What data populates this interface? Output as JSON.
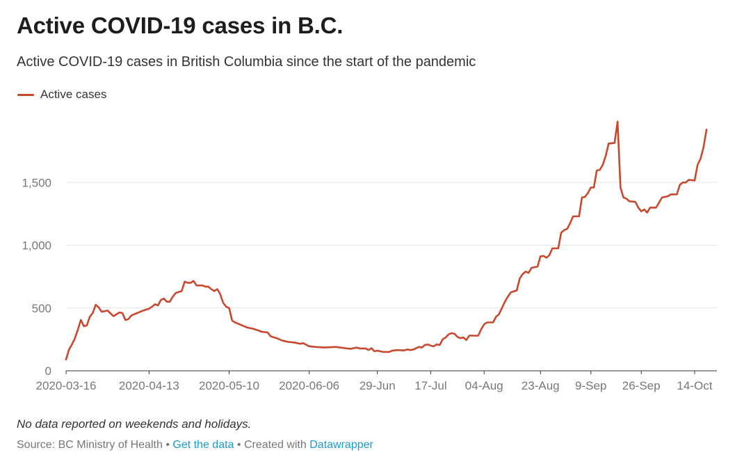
{
  "chart_data": {
    "type": "line",
    "title": "Active COVID-19 cases in B.C.",
    "subtitle": "Active COVID-19 cases in British Columbia since the start of the pandemic",
    "legend": {
      "placement": "top-left"
    },
    "series": [
      {
        "name": "Active cases",
        "color": "#c9472c",
        "points": [
          [
            "2020-03-16",
            90
          ],
          [
            "2020-03-17",
            170
          ],
          [
            "2020-03-18",
            210
          ],
          [
            "2020-03-19",
            260
          ],
          [
            "2020-03-20",
            330
          ],
          [
            "2020-03-21",
            405
          ],
          [
            "2020-03-22",
            355
          ],
          [
            "2020-03-23",
            360
          ],
          [
            "2020-03-24",
            430
          ],
          [
            "2020-03-25",
            460
          ],
          [
            "2020-03-26",
            525
          ],
          [
            "2020-03-27",
            505
          ],
          [
            "2020-03-28",
            470
          ],
          [
            "2020-03-30",
            480
          ],
          [
            "2020-04-01",
            435
          ],
          [
            "2020-04-02",
            450
          ],
          [
            "2020-04-03",
            465
          ],
          [
            "2020-04-04",
            460
          ],
          [
            "2020-04-05",
            405
          ],
          [
            "2020-04-06",
            410
          ],
          [
            "2020-04-07",
            440
          ],
          [
            "2020-04-09",
            460
          ],
          [
            "2020-04-11",
            480
          ],
          [
            "2020-04-13",
            495
          ],
          [
            "2020-04-14",
            510
          ],
          [
            "2020-04-15",
            530
          ],
          [
            "2020-04-16",
            520
          ],
          [
            "2020-04-17",
            565
          ],
          [
            "2020-04-18",
            575
          ],
          [
            "2020-04-19",
            550
          ],
          [
            "2020-04-20",
            550
          ],
          [
            "2020-04-21",
            590
          ],
          [
            "2020-04-22",
            620
          ],
          [
            "2020-04-24",
            635
          ],
          [
            "2020-04-25",
            710
          ],
          [
            "2020-04-26",
            700
          ],
          [
            "2020-04-27",
            700
          ],
          [
            "2020-04-28",
            715
          ],
          [
            "2020-04-29",
            680
          ],
          [
            "2020-05-01",
            680
          ],
          [
            "2020-05-02",
            670
          ],
          [
            "2020-05-03",
            670
          ],
          [
            "2020-05-04",
            650
          ],
          [
            "2020-05-05",
            635
          ],
          [
            "2020-05-06",
            650
          ],
          [
            "2020-05-07",
            610
          ],
          [
            "2020-05-08",
            540
          ],
          [
            "2020-05-09",
            510
          ],
          [
            "2020-05-10",
            500
          ],
          [
            "2020-05-11",
            400
          ],
          [
            "2020-05-12",
            385
          ],
          [
            "2020-05-14",
            365
          ],
          [
            "2020-05-16",
            345
          ],
          [
            "2020-05-18",
            335
          ],
          [
            "2020-05-20",
            320
          ],
          [
            "2020-05-21",
            310
          ],
          [
            "2020-05-23",
            305
          ],
          [
            "2020-05-24",
            275
          ],
          [
            "2020-05-26",
            260
          ],
          [
            "2020-05-28",
            240
          ],
          [
            "2020-05-30",
            230
          ],
          [
            "2020-06-01",
            225
          ],
          [
            "2020-06-03",
            215
          ],
          [
            "2020-06-04",
            220
          ],
          [
            "2020-06-06",
            195
          ],
          [
            "2020-06-08",
            190
          ],
          [
            "2020-06-11",
            185
          ],
          [
            "2020-06-15",
            190
          ],
          [
            "2020-06-18",
            180
          ],
          [
            "2020-06-20",
            175
          ],
          [
            "2020-06-22",
            185
          ],
          [
            "2020-06-23",
            178
          ],
          [
            "2020-06-25",
            178
          ],
          [
            "2020-06-26",
            165
          ],
          [
            "2020-06-27",
            180
          ],
          [
            "2020-06-28",
            155
          ],
          [
            "2020-06-29",
            160
          ],
          [
            "2020-07-01",
            150
          ],
          [
            "2020-07-03",
            150
          ],
          [
            "2020-07-04",
            160
          ],
          [
            "2020-07-06",
            165
          ],
          [
            "2020-07-08",
            162
          ],
          [
            "2020-07-09",
            170
          ],
          [
            "2020-07-10",
            165
          ],
          [
            "2020-07-11",
            168
          ],
          [
            "2020-07-13",
            190
          ],
          [
            "2020-07-14",
            185
          ],
          [
            "2020-07-15",
            205
          ],
          [
            "2020-07-16",
            210
          ],
          [
            "2020-07-17",
            200
          ],
          [
            "2020-07-18",
            195
          ],
          [
            "2020-07-19",
            210
          ],
          [
            "2020-07-20",
            205
          ],
          [
            "2020-07-21",
            250
          ],
          [
            "2020-07-22",
            265
          ],
          [
            "2020-07-23",
            290
          ],
          [
            "2020-07-24",
            300
          ],
          [
            "2020-07-25",
            295
          ],
          [
            "2020-07-26",
            270
          ],
          [
            "2020-07-27",
            260
          ],
          [
            "2020-07-28",
            265
          ],
          [
            "2020-07-29",
            245
          ],
          [
            "2020-07-30",
            280
          ],
          [
            "2020-07-31",
            280
          ],
          [
            "2020-08-02",
            280
          ],
          [
            "2020-08-03",
            330
          ],
          [
            "2020-08-04",
            370
          ],
          [
            "2020-08-05",
            385
          ],
          [
            "2020-08-07",
            385
          ],
          [
            "2020-08-08",
            430
          ],
          [
            "2020-08-09",
            450
          ],
          [
            "2020-08-10",
            500
          ],
          [
            "2020-08-11",
            550
          ],
          [
            "2020-08-12",
            590
          ],
          [
            "2020-08-13",
            625
          ],
          [
            "2020-08-15",
            640
          ],
          [
            "2020-08-16",
            735
          ],
          [
            "2020-08-17",
            770
          ],
          [
            "2020-08-18",
            790
          ],
          [
            "2020-08-19",
            780
          ],
          [
            "2020-08-20",
            820
          ],
          [
            "2020-08-21",
            825
          ],
          [
            "2020-08-22",
            830
          ],
          [
            "2020-08-23",
            910
          ],
          [
            "2020-08-24",
            915
          ],
          [
            "2020-08-25",
            900
          ],
          [
            "2020-08-26",
            920
          ],
          [
            "2020-08-27",
            975
          ],
          [
            "2020-08-29",
            975
          ],
          [
            "2020-08-30",
            1100
          ],
          [
            "2020-08-31",
            1120
          ],
          [
            "2020-09-01",
            1130
          ],
          [
            "2020-09-02",
            1175
          ],
          [
            "2020-09-03",
            1230
          ],
          [
            "2020-09-05",
            1230
          ],
          [
            "2020-09-06",
            1380
          ],
          [
            "2020-09-07",
            1385
          ],
          [
            "2020-09-08",
            1415
          ],
          [
            "2020-09-09",
            1460
          ],
          [
            "2020-09-10",
            1460
          ],
          [
            "2020-09-11",
            1595
          ],
          [
            "2020-09-12",
            1600
          ],
          [
            "2020-09-13",
            1640
          ],
          [
            "2020-09-14",
            1710
          ],
          [
            "2020-09-15",
            1810
          ],
          [
            "2020-09-17",
            1815
          ],
          [
            "2020-09-18",
            1985
          ],
          [
            "2020-09-19",
            1460
          ],
          [
            "2020-09-20",
            1380
          ],
          [
            "2020-09-21",
            1370
          ],
          [
            "2020-09-22",
            1350
          ],
          [
            "2020-09-24",
            1345
          ],
          [
            "2020-09-25",
            1300
          ],
          [
            "2020-09-26",
            1270
          ],
          [
            "2020-09-27",
            1285
          ],
          [
            "2020-09-28",
            1260
          ],
          [
            "2020-09-29",
            1300
          ],
          [
            "2020-09-30",
            1300
          ],
          [
            "2020-10-01",
            1300
          ],
          [
            "2020-10-02",
            1340
          ],
          [
            "2020-10-03",
            1380
          ],
          [
            "2020-10-05",
            1390
          ],
          [
            "2020-10-06",
            1405
          ],
          [
            "2020-10-08",
            1405
          ],
          [
            "2020-10-09",
            1480
          ],
          [
            "2020-10-10",
            1500
          ],
          [
            "2020-10-11",
            1500
          ],
          [
            "2020-10-12",
            1520
          ],
          [
            "2020-10-14",
            1515
          ],
          [
            "2020-10-15",
            1640
          ],
          [
            "2020-10-16",
            1690
          ],
          [
            "2020-10-17",
            1780
          ],
          [
            "2020-10-18",
            1920
          ]
        ]
      }
    ],
    "x_axis": {
      "range": [
        "2020-03-16",
        "2020-10-18"
      ],
      "ticks": [
        {
          "date": "2020-03-16",
          "label": "2020-03-16"
        },
        {
          "date": "2020-04-13",
          "label": "2020-04-13"
        },
        {
          "date": "2020-05-10",
          "label": "2020-05-10"
        },
        {
          "date": "2020-06-06",
          "label": "2020-06-06"
        },
        {
          "date": "2020-06-29",
          "label": "29-Jun"
        },
        {
          "date": "2020-07-17",
          "label": "17-Jul"
        },
        {
          "date": "2020-08-04",
          "label": "04-Aug"
        },
        {
          "date": "2020-08-23",
          "label": "23-Aug"
        },
        {
          "date": "2020-09-09",
          "label": "9-Sep"
        },
        {
          "date": "2020-09-26",
          "label": "26-Sep"
        },
        {
          "date": "2020-10-14",
          "label": "14-Oct"
        }
      ]
    },
    "y_axis": {
      "range": [
        0,
        2000
      ],
      "ticks": [
        {
          "value": 0,
          "label": "0"
        },
        {
          "value": 500,
          "label": "500"
        },
        {
          "value": 1000,
          "label": "1,000"
        },
        {
          "value": 1500,
          "label": "1,500"
        }
      ],
      "grid": true
    },
    "note": "No data reported on weekends and holidays.",
    "footer": {
      "source_text": "Source: BC Ministry of Health",
      "separator": "•",
      "data_link": "Get the data",
      "credit_text": "Created with",
      "credit_link": "Datawrapper",
      "link_color": "#1a9bcf"
    }
  }
}
